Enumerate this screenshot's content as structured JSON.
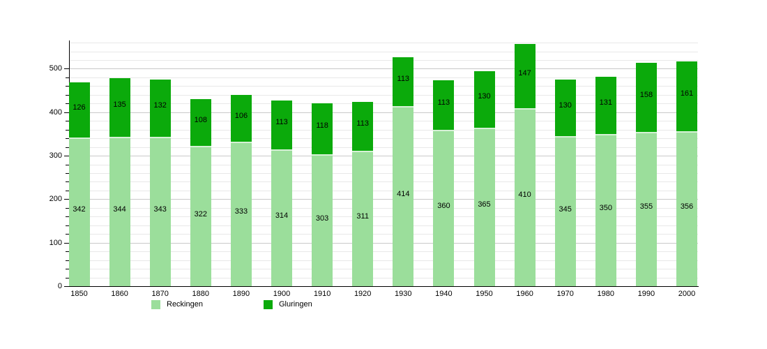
{
  "chart_data": {
    "type": "bar",
    "stacked": true,
    "title": "",
    "xlabel": "",
    "ylabel": "",
    "categories": [
      "1850",
      "1860",
      "1870",
      "1880",
      "1890",
      "1900",
      "1910",
      "1920",
      "1930",
      "1940",
      "1950",
      "1960",
      "1970",
      "1980",
      "1990",
      "2000"
    ],
    "series": [
      {
        "name": "Reckingen",
        "color": "#9bde9b",
        "edge_highlight_color": "#d6f1d6",
        "values": [
          342,
          344,
          343,
          322,
          333,
          314,
          303,
          311,
          414,
          360,
          365,
          410,
          345,
          350,
          355,
          356
        ]
      },
      {
        "name": "Gluringen",
        "color": "#0baa0b",
        "edge_highlight_color": "#0baa0b",
        "values": [
          126,
          135,
          132,
          108,
          106,
          113,
          118,
          113,
          113,
          113,
          130,
          147,
          130,
          131,
          158,
          161
        ]
      }
    ],
    "bar_value_labels_visible": true,
    "ylim": [
      0,
      565
    ],
    "ytick_labels": [
      "0",
      "100",
      "200",
      "300",
      "400",
      "500"
    ],
    "ytick_major_step": 100,
    "ytick_minor_step": 20,
    "grid": true,
    "legend_position": "bottom",
    "axis_color": "#000000",
    "gridline_minor_color": "#e8e8e8",
    "gridline_major_color": "#c9c9c9",
    "background_color": "#ffffff"
  }
}
